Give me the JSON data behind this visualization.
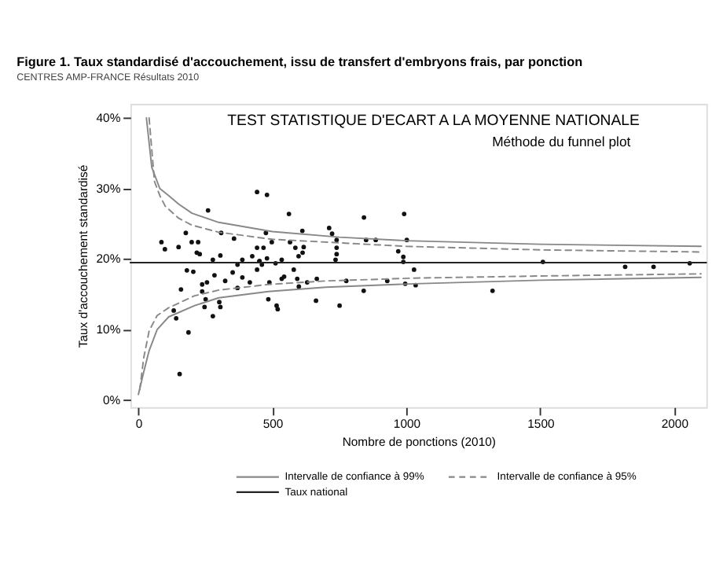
{
  "chart_data": {
    "type": "scatter",
    "title": "Figure 1. Taux standardisé d'accouchement, issu de transfert d'embryons frais, par ponction",
    "subtitle": "CENTRES AMP-FRANCE Résultats 2010",
    "xlabel": "Nombre de ponctions (2010)",
    "ylabel": "Taux d'accouchement standardisé",
    "annotations": [
      "TEST STATISTIQUE D'ECART A LA MOYENNE NATIONALE",
      "Méthode du funnel plot"
    ],
    "xlim": [
      -30,
      2120
    ],
    "xticks": [
      0,
      500,
      1000,
      1500,
      2000
    ],
    "ylim": [
      -1,
      42
    ],
    "yticks": [
      {
        "value": 0,
        "label": "0%"
      },
      {
        "value": 10,
        "label": "10%"
      },
      {
        "value": 20,
        "label": "20%"
      },
      {
        "value": 30,
        "label": "30%"
      },
      {
        "value": 40,
        "label": "40%"
      }
    ],
    "grid": false,
    "legend": "bottom",
    "series": [
      {
        "marker": "circle",
        "color": "#111111",
        "x": [
          443,
          480,
          260,
          562,
          842,
          992,
          309,
          357,
          476,
          612,
          712,
          723,
          177,
          86,
          99,
          150,
          199,
          223,
          218,
          229,
          278,
          306,
          443,
          467,
          498,
          566,
          586,
          617,
          740,
          740,
          740,
          850,
          886,
          1002,
          970,
          989,
          989,
          425,
          452,
          480,
          535,
          598,
          613,
          1510,
          1817,
          1923,
          2058,
          1322,
          181,
          205,
          159,
          132,
          141,
          187,
          154,
          238,
          238,
          256,
          284,
          251,
          247,
          278,
          302,
          306,
          324,
          370,
          388,
          416,
          352,
          485,
          516,
          520,
          489,
          535,
          544,
          593,
          599,
          630,
          663,
          666,
          751,
          776,
          841,
          929,
          996,
          1035,
          1029,
          580,
          443,
          370,
          388,
          452,
          461,
          512,
          736
        ],
        "values": [
          29.5,
          29.1,
          26.9,
          26.4,
          25.9,
          26.4,
          23.7,
          22.9,
          23.7,
          24.0,
          24.4,
          23.6,
          23.7,
          22.4,
          21.4,
          21.7,
          22.4,
          22.4,
          20.9,
          20.7,
          19.9,
          20.5,
          21.6,
          21.6,
          22.4,
          22.4,
          21.6,
          21.7,
          22.7,
          21.6,
          20.7,
          22.7,
          22.7,
          22.7,
          21.1,
          20.3,
          19.6,
          20.4,
          19.7,
          20.1,
          19.9,
          20.4,
          20.9,
          19.6,
          18.9,
          18.9,
          19.4,
          15.5,
          18.4,
          18.2,
          15.7,
          12.7,
          11.6,
          9.6,
          3.7,
          15.4,
          16.4,
          16.7,
          17.7,
          14.3,
          13.2,
          11.9,
          13.9,
          13.2,
          16.9,
          15.9,
          17.4,
          16.7,
          18.1,
          14.3,
          13.4,
          12.9,
          16.7,
          17.2,
          17.5,
          17.2,
          16.1,
          16.7,
          14.1,
          17.2,
          13.4,
          16.9,
          15.5,
          16.9,
          16.5,
          16.3,
          18.5,
          18.5,
          18.5,
          19.2,
          19.9,
          19.7,
          19.2,
          19.4,
          19.9
        ]
      },
      {
        "type": "line",
        "name": "Intervalle de confiance à 99%",
        "color": "#888888",
        "line_style": "solid",
        "x": [
          30,
          50,
          80,
          113,
          150,
          200,
          300,
          500,
          750,
          1000,
          1500,
          2100
        ],
        "values": [
          40,
          33,
          30,
          29,
          27.8,
          26.5,
          25.2,
          23.9,
          23.1,
          22.6,
          22.1,
          21.8
        ]
      },
      {
        "type": "line",
        "color": "#888888",
        "line_style": "solid",
        "x": [
          0,
          20,
          40,
          70,
          113,
          210,
          300,
          485,
          700,
          1030,
          1500,
          2100
        ],
        "values": [
          0.8,
          4,
          7,
          10,
          11.8,
          13.4,
          14.5,
          15.4,
          16,
          16.5,
          17,
          17.4
        ]
      },
      {
        "type": "line",
        "name": "Intervalle de confiance à 95%",
        "color": "#888888",
        "line_style": "dashed",
        "x": [
          40,
          60,
          80,
          100,
          150,
          200,
          300,
          500,
          1000,
          1500,
          2100
        ],
        "values": [
          40,
          31,
          29,
          27.5,
          25.8,
          24.8,
          23.8,
          22.8,
          21.8,
          21.3,
          21.0
        ]
      },
      {
        "type": "line",
        "color": "#888888",
        "line_style": "dashed",
        "x": [
          5,
          20,
          40,
          70,
          113,
          210,
          300,
          485,
          700,
          1030,
          1500,
          2100
        ],
        "values": [
          1.5,
          6,
          9.8,
          12,
          13.1,
          14.8,
          15.6,
          16.4,
          16.9,
          17.3,
          17.6,
          17.9
        ]
      },
      {
        "type": "line",
        "name": "Taux national",
        "color": "#222222",
        "line_style": "solid",
        "x": [
          -30,
          2120
        ],
        "values": [
          19.5,
          19.5
        ]
      }
    ]
  }
}
